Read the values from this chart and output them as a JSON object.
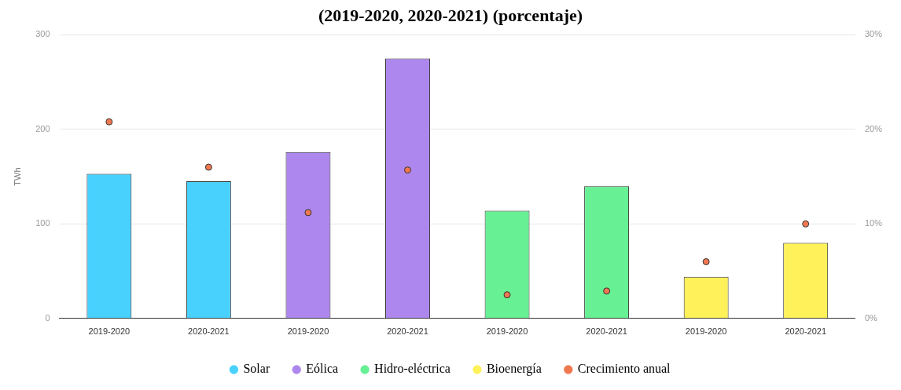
{
  "chart_data": {
    "type": "bar",
    "title": "(2019-2020, 2020-2021) (porcentaje)",
    "ylabel": "TWh",
    "categories": [
      "2019-2020",
      "2020-2021",
      "2019-2020",
      "2020-2021",
      "2019-2020",
      "2020-2021",
      "2019-2020",
      "2020-2021"
    ],
    "series": [
      {
        "name": "Solar",
        "color": "#48d1fd",
        "values": [
          153,
          145,
          null,
          null,
          null,
          null,
          null,
          null
        ]
      },
      {
        "name": "Eólica",
        "color": "#ae87ee",
        "values": [
          null,
          null,
          176,
          275,
          null,
          null,
          null,
          null
        ]
      },
      {
        "name": "Hidro-eléctrica",
        "color": "#68f094",
        "values": [
          null,
          null,
          null,
          null,
          114,
          140,
          null,
          null
        ]
      },
      {
        "name": "Bioenergía",
        "color": "#fff159",
        "values": [
          null,
          null,
          null,
          null,
          null,
          null,
          44,
          80
        ]
      },
      {
        "name": "Crecimiento anual",
        "type": "scatter",
        "axis": "y2",
        "color": "#f07850",
        "marker": "circle",
        "values": [
          20.8,
          16,
          11.2,
          15.7,
          2.5,
          2.9,
          6,
          10
        ]
      }
    ],
    "ylim": [
      0,
      300
    ],
    "yticks": [
      0,
      100,
      200,
      300
    ],
    "y2lim": [
      0,
      30
    ],
    "y2ticks": [
      {
        "value": 0,
        "label": "0%"
      },
      {
        "value": 10,
        "label": "10%"
      },
      {
        "value": 20,
        "label": "20%"
      },
      {
        "value": 30,
        "label": "30%"
      }
    ],
    "grid": "y",
    "legend": "bottom"
  }
}
